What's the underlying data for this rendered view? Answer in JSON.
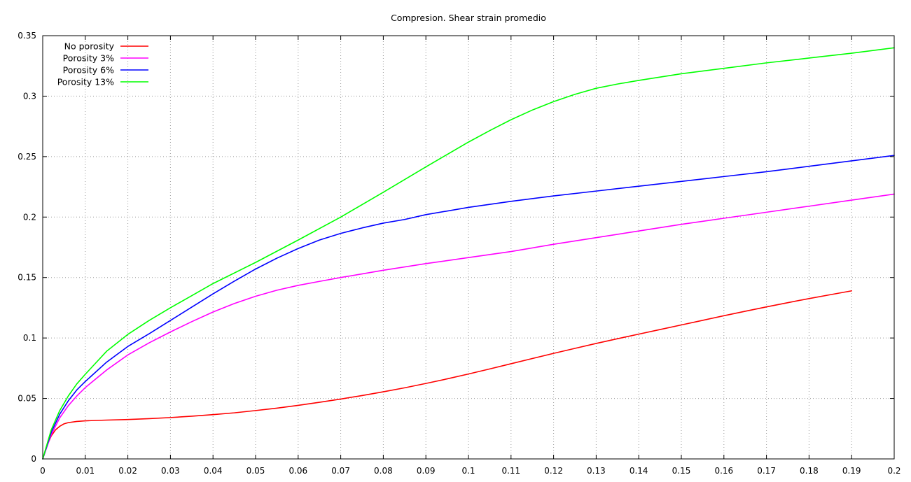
{
  "chart_data": {
    "type": "line",
    "title": "Compresion. Shear strain promedio",
    "xlabel": "",
    "ylabel": "",
    "xlim": [
      0,
      0.2
    ],
    "ylim": [
      0,
      0.35
    ],
    "grid": true,
    "legend_position": "top-left",
    "x_ticks": [
      {
        "value": 0,
        "label": "0"
      },
      {
        "value": 0.01,
        "label": "0.01"
      },
      {
        "value": 0.02,
        "label": "0.02"
      },
      {
        "value": 0.03,
        "label": "0.03"
      },
      {
        "value": 0.04,
        "label": "0.04"
      },
      {
        "value": 0.05,
        "label": "0.05"
      },
      {
        "value": 0.06,
        "label": "0.06"
      },
      {
        "value": 0.07,
        "label": "0.07"
      },
      {
        "value": 0.08,
        "label": "0.08"
      },
      {
        "value": 0.09,
        "label": "0.09"
      },
      {
        "value": 0.1,
        "label": "0.1"
      },
      {
        "value": 0.11,
        "label": "0.11"
      },
      {
        "value": 0.12,
        "label": "0.12"
      },
      {
        "value": 0.13,
        "label": "0.13"
      },
      {
        "value": 0.14,
        "label": "0.14"
      },
      {
        "value": 0.15,
        "label": "0.15"
      },
      {
        "value": 0.16,
        "label": "0.16"
      },
      {
        "value": 0.17,
        "label": "0.17"
      },
      {
        "value": 0.18,
        "label": "0.18"
      },
      {
        "value": 0.19,
        "label": "0.19"
      },
      {
        "value": 0.2,
        "label": "0.2"
      }
    ],
    "y_ticks": [
      {
        "value": 0,
        "label": "0"
      },
      {
        "value": 0.05,
        "label": "0.05"
      },
      {
        "value": 0.1,
        "label": "0.1"
      },
      {
        "value": 0.15,
        "label": "0.15"
      },
      {
        "value": 0.2,
        "label": "0.2"
      },
      {
        "value": 0.25,
        "label": "0.25"
      },
      {
        "value": 0.3,
        "label": "0.3"
      },
      {
        "value": 0.35,
        "label": "0.35"
      }
    ],
    "series": [
      {
        "name": "No porosity",
        "color": "#ff0000",
        "x": [
          0,
          0.001,
          0.002,
          0.003,
          0.004,
          0.005,
          0.006,
          0.008,
          0.01,
          0.015,
          0.02,
          0.025,
          0.03,
          0.035,
          0.04,
          0.045,
          0.05,
          0.055,
          0.06,
          0.065,
          0.07,
          0.075,
          0.08,
          0.085,
          0.09,
          0.095,
          0.1,
          0.105,
          0.11,
          0.115,
          0.12,
          0.125,
          0.13,
          0.135,
          0.14,
          0.145,
          0.15,
          0.155,
          0.16,
          0.165,
          0.17,
          0.175,
          0.18,
          0.185,
          0.19
        ],
        "y": [
          0,
          0.011,
          0.019,
          0.024,
          0.027,
          0.029,
          0.03,
          0.031,
          0.0315,
          0.0321,
          0.0326,
          0.0333,
          0.0342,
          0.0353,
          0.0366,
          0.0381,
          0.04,
          0.042,
          0.0443,
          0.0468,
          0.0495,
          0.0524,
          0.0555,
          0.0588,
          0.0624,
          0.0662,
          0.0702,
          0.0744,
          0.0787,
          0.083,
          0.0873,
          0.0914,
          0.0955,
          0.0994,
          0.1032,
          0.107,
          0.1108,
          0.1146,
          0.1184,
          0.1221,
          0.1257,
          0.1292,
          0.1326,
          0.1358,
          0.139
        ]
      },
      {
        "name": "Porosity 3%",
        "color": "#ff00ff",
        "x": [
          0,
          0.002,
          0.004,
          0.006,
          0.008,
          0.01,
          0.015,
          0.02,
          0.025,
          0.03,
          0.035,
          0.04,
          0.045,
          0.05,
          0.055,
          0.06,
          0.065,
          0.07,
          0.075,
          0.08,
          0.09,
          0.1,
          0.11,
          0.12,
          0.13,
          0.14,
          0.15,
          0.16,
          0.17,
          0.18,
          0.19,
          0.2
        ],
        "y": [
          0,
          0.02,
          0.034,
          0.044,
          0.052,
          0.059,
          0.0735,
          0.086,
          0.096,
          0.105,
          0.1135,
          0.1215,
          0.1285,
          0.1345,
          0.1395,
          0.1435,
          0.1468,
          0.15,
          0.153,
          0.156,
          0.1615,
          0.1665,
          0.1715,
          0.1775,
          0.183,
          0.1885,
          0.194,
          0.199,
          0.204,
          0.209,
          0.214,
          0.219
        ]
      },
      {
        "name": "Porosity 6%",
        "color": "#0000ff",
        "x": [
          0,
          0.002,
          0.004,
          0.006,
          0.008,
          0.01,
          0.015,
          0.02,
          0.025,
          0.03,
          0.035,
          0.04,
          0.045,
          0.05,
          0.055,
          0.06,
          0.065,
          0.07,
          0.075,
          0.08,
          0.085,
          0.09,
          0.1,
          0.11,
          0.12,
          0.13,
          0.14,
          0.15,
          0.16,
          0.17,
          0.18,
          0.19,
          0.2
        ],
        "y": [
          0,
          0.022,
          0.037,
          0.048,
          0.057,
          0.064,
          0.08,
          0.093,
          0.1035,
          0.1145,
          0.1255,
          0.1365,
          0.147,
          0.157,
          0.166,
          0.174,
          0.181,
          0.1865,
          0.191,
          0.195,
          0.198,
          0.202,
          0.208,
          0.213,
          0.2175,
          0.2215,
          0.2255,
          0.2295,
          0.2335,
          0.2375,
          0.242,
          0.2465,
          0.251
        ]
      },
      {
        "name": "Porosity 13%",
        "color": "#00ff00",
        "x": [
          0,
          0.002,
          0.004,
          0.006,
          0.008,
          0.01,
          0.015,
          0.02,
          0.025,
          0.03,
          0.035,
          0.04,
          0.05,
          0.06,
          0.07,
          0.08,
          0.09,
          0.1,
          0.105,
          0.11,
          0.115,
          0.12,
          0.125,
          0.13,
          0.135,
          0.14,
          0.15,
          0.16,
          0.17,
          0.18,
          0.19,
          0.2
        ],
        "y": [
          0,
          0.024,
          0.04,
          0.052,
          0.062,
          0.07,
          0.089,
          0.103,
          0.1145,
          0.125,
          0.135,
          0.145,
          0.1625,
          0.181,
          0.2,
          0.2205,
          0.2415,
          0.262,
          0.2715,
          0.2805,
          0.2885,
          0.2955,
          0.3015,
          0.3065,
          0.31,
          0.313,
          0.3185,
          0.323,
          0.3275,
          0.3315,
          0.3355,
          0.34
        ]
      }
    ]
  }
}
